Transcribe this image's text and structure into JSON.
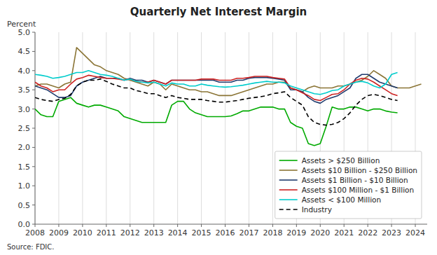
{
  "chart_data": {
    "type": "line",
    "title": "Quarterly Net Interest Margin",
    "y_label": "Percent",
    "source": "Source: FDIC.",
    "x": [
      2008,
      2008.25,
      2008.5,
      2008.75,
      2009,
      2009.25,
      2009.5,
      2009.75,
      2010,
      2010.25,
      2010.5,
      2010.75,
      2011,
      2011.25,
      2011.5,
      2011.75,
      2012,
      2012.25,
      2012.5,
      2012.75,
      2013,
      2013.25,
      2013.5,
      2013.75,
      2014,
      2014.25,
      2014.5,
      2014.75,
      2015,
      2015.25,
      2015.5,
      2015.75,
      2016,
      2016.25,
      2016.5,
      2016.75,
      2017,
      2017.25,
      2017.5,
      2017.75,
      2018,
      2018.25,
      2018.5,
      2018.75,
      2019,
      2019.25,
      2019.5,
      2019.75,
      2020,
      2020.25,
      2020.5,
      2020.75,
      2021,
      2021.25,
      2021.5,
      2021.75,
      2022,
      2022.25,
      2022.5,
      2022.75,
      2023,
      2023.25,
      2023.5,
      2023.75,
      2024,
      2024.25
    ],
    "series": [
      {
        "name": "Assets > $250 Billion",
        "color": "#00aa00",
        "line_style": "solid",
        "values": [
          3.0,
          2.85,
          2.8,
          2.8,
          3.2,
          3.25,
          3.3,
          3.15,
          3.1,
          3.05,
          3.1,
          3.1,
          3.05,
          3.0,
          2.95,
          2.8,
          2.75,
          2.7,
          2.65,
          2.65,
          2.65,
          2.65,
          2.65,
          3.1,
          3.2,
          3.2,
          3.0,
          2.9,
          2.85,
          2.8,
          2.8,
          2.8,
          2.8,
          2.82,
          2.88,
          2.95,
          2.95,
          3.0,
          3.05,
          3.05,
          3.05,
          3.0,
          3.0,
          2.65,
          2.55,
          2.5,
          2.1,
          2.05,
          2.1,
          2.55,
          3.05,
          3.0,
          3.0,
          3.05,
          3.05,
          3.0,
          2.95,
          3.0,
          3.0,
          2.95,
          2.92,
          2.9,
          null,
          null,
          null,
          null
        ]
      },
      {
        "name": "Assets $10 Billion - $250 Billion",
        "color": "#8b7536",
        "line_style": "solid",
        "values": [
          3.6,
          3.65,
          3.65,
          3.6,
          3.55,
          3.65,
          3.7,
          4.6,
          4.45,
          4.3,
          4.15,
          4.1,
          4.0,
          3.95,
          3.9,
          3.8,
          3.75,
          3.7,
          3.65,
          3.6,
          3.7,
          3.65,
          3.5,
          3.65,
          3.6,
          3.55,
          3.5,
          3.5,
          3.45,
          3.45,
          3.4,
          3.35,
          3.35,
          3.35,
          3.4,
          3.45,
          3.5,
          3.55,
          3.6,
          3.65,
          3.65,
          3.7,
          3.7,
          3.55,
          3.5,
          3.45,
          3.55,
          3.6,
          3.55,
          3.55,
          3.55,
          3.6,
          3.6,
          3.65,
          3.7,
          3.75,
          3.85,
          4.0,
          3.9,
          3.8,
          3.6,
          3.55,
          3.55,
          3.55,
          3.6,
          3.65
        ]
      },
      {
        "name": "Assets $1 Billion - $10 Billion",
        "color": "#1f3b6e",
        "line_style": "solid",
        "values": [
          3.6,
          3.55,
          3.5,
          3.4,
          3.3,
          3.3,
          3.35,
          3.6,
          3.7,
          3.75,
          3.8,
          3.85,
          3.8,
          3.8,
          3.8,
          3.75,
          3.8,
          3.75,
          3.75,
          3.7,
          3.75,
          3.7,
          3.65,
          3.75,
          3.75,
          3.75,
          3.75,
          3.75,
          3.75,
          3.75,
          3.75,
          3.7,
          3.7,
          3.7,
          3.75,
          3.75,
          3.8,
          3.82,
          3.82,
          3.82,
          3.8,
          3.78,
          3.75,
          3.5,
          3.5,
          3.45,
          3.3,
          3.2,
          3.15,
          3.25,
          3.3,
          3.35,
          3.45,
          3.55,
          3.8,
          3.9,
          3.9,
          3.8,
          3.7,
          3.65,
          3.6,
          3.55,
          null,
          null,
          null,
          null
        ]
      },
      {
        "name": "Assets $100 Million - $1 Billion",
        "color": "#cc2222",
        "line_style": "solid",
        "values": [
          3.7,
          3.6,
          3.55,
          3.45,
          3.5,
          3.5,
          3.65,
          3.78,
          3.82,
          3.88,
          3.85,
          3.82,
          3.8,
          3.8,
          3.78,
          3.75,
          3.78,
          3.72,
          3.7,
          3.7,
          3.75,
          3.7,
          3.65,
          3.75,
          3.75,
          3.75,
          3.75,
          3.75,
          3.78,
          3.78,
          3.78,
          3.75,
          3.75,
          3.75,
          3.8,
          3.8,
          3.82,
          3.85,
          3.85,
          3.85,
          3.82,
          3.8,
          3.78,
          3.55,
          3.5,
          3.42,
          3.35,
          3.25,
          3.22,
          3.3,
          3.38,
          3.4,
          3.5,
          3.65,
          3.75,
          3.8,
          3.78,
          3.7,
          3.6,
          3.5,
          3.4,
          3.35,
          null,
          null,
          null,
          null
        ]
      },
      {
        "name": "Assets < $100 Million",
        "color": "#00cccc",
        "line_style": "solid",
        "values": [
          3.9,
          3.88,
          3.85,
          3.8,
          3.82,
          3.85,
          3.9,
          3.95,
          3.95,
          4.0,
          3.95,
          3.9,
          3.88,
          3.85,
          3.8,
          3.75,
          3.78,
          3.72,
          3.7,
          3.68,
          3.7,
          3.65,
          3.6,
          3.68,
          3.65,
          3.65,
          3.6,
          3.6,
          3.65,
          3.62,
          3.6,
          3.58,
          3.57,
          3.58,
          3.6,
          3.62,
          3.65,
          3.68,
          3.7,
          3.72,
          3.7,
          3.7,
          3.68,
          3.6,
          3.55,
          3.5,
          3.45,
          3.4,
          3.38,
          3.42,
          3.48,
          3.5,
          3.6,
          3.65,
          3.7,
          3.72,
          3.68,
          3.6,
          3.55,
          3.65,
          3.9,
          3.95,
          null,
          null,
          null,
          null
        ]
      },
      {
        "name": "Industry",
        "color": "#000000",
        "line_style": "dashed",
        "values": [
          3.3,
          3.25,
          3.22,
          3.2,
          3.25,
          3.28,
          3.38,
          3.6,
          3.7,
          3.75,
          3.75,
          3.78,
          3.72,
          3.65,
          3.6,
          3.55,
          3.55,
          3.48,
          3.45,
          3.4,
          3.4,
          3.35,
          3.3,
          3.35,
          3.3,
          3.28,
          3.25,
          3.25,
          3.25,
          3.22,
          3.2,
          3.18,
          3.18,
          3.2,
          3.22,
          3.25,
          3.28,
          3.3,
          3.32,
          3.35,
          3.4,
          3.42,
          3.45,
          3.3,
          3.2,
          3.1,
          2.8,
          2.65,
          2.6,
          2.58,
          2.6,
          2.65,
          2.75,
          2.9,
          3.1,
          3.25,
          3.35,
          3.38,
          3.35,
          3.3,
          3.25,
          3.22,
          null,
          null,
          null,
          null
        ]
      }
    ],
    "xlim": [
      2008,
      2024.5
    ],
    "xticks": [
      2008,
      2009,
      2010,
      2011,
      2012,
      2013,
      2014,
      2015,
      2016,
      2017,
      2018,
      2019,
      2020,
      2021,
      2022,
      2023,
      2024
    ],
    "ylim": [
      0.0,
      5.0
    ],
    "yticks": [
      {
        "value": 0.0,
        "label": "0.0"
      },
      0.5,
      {
        "value": 1.0,
        "label": "1.0"
      },
      1.5,
      {
        "value": 2.0,
        "label": "2.0"
      },
      2.5,
      {
        "value": 3.0,
        "label": "3.0"
      },
      3.5,
      {
        "value": 4.0,
        "label": "4.0"
      },
      4.5,
      {
        "value": 5.0,
        "label": "5.0"
      }
    ],
    "grid": "x",
    "legend": "lower right"
  }
}
